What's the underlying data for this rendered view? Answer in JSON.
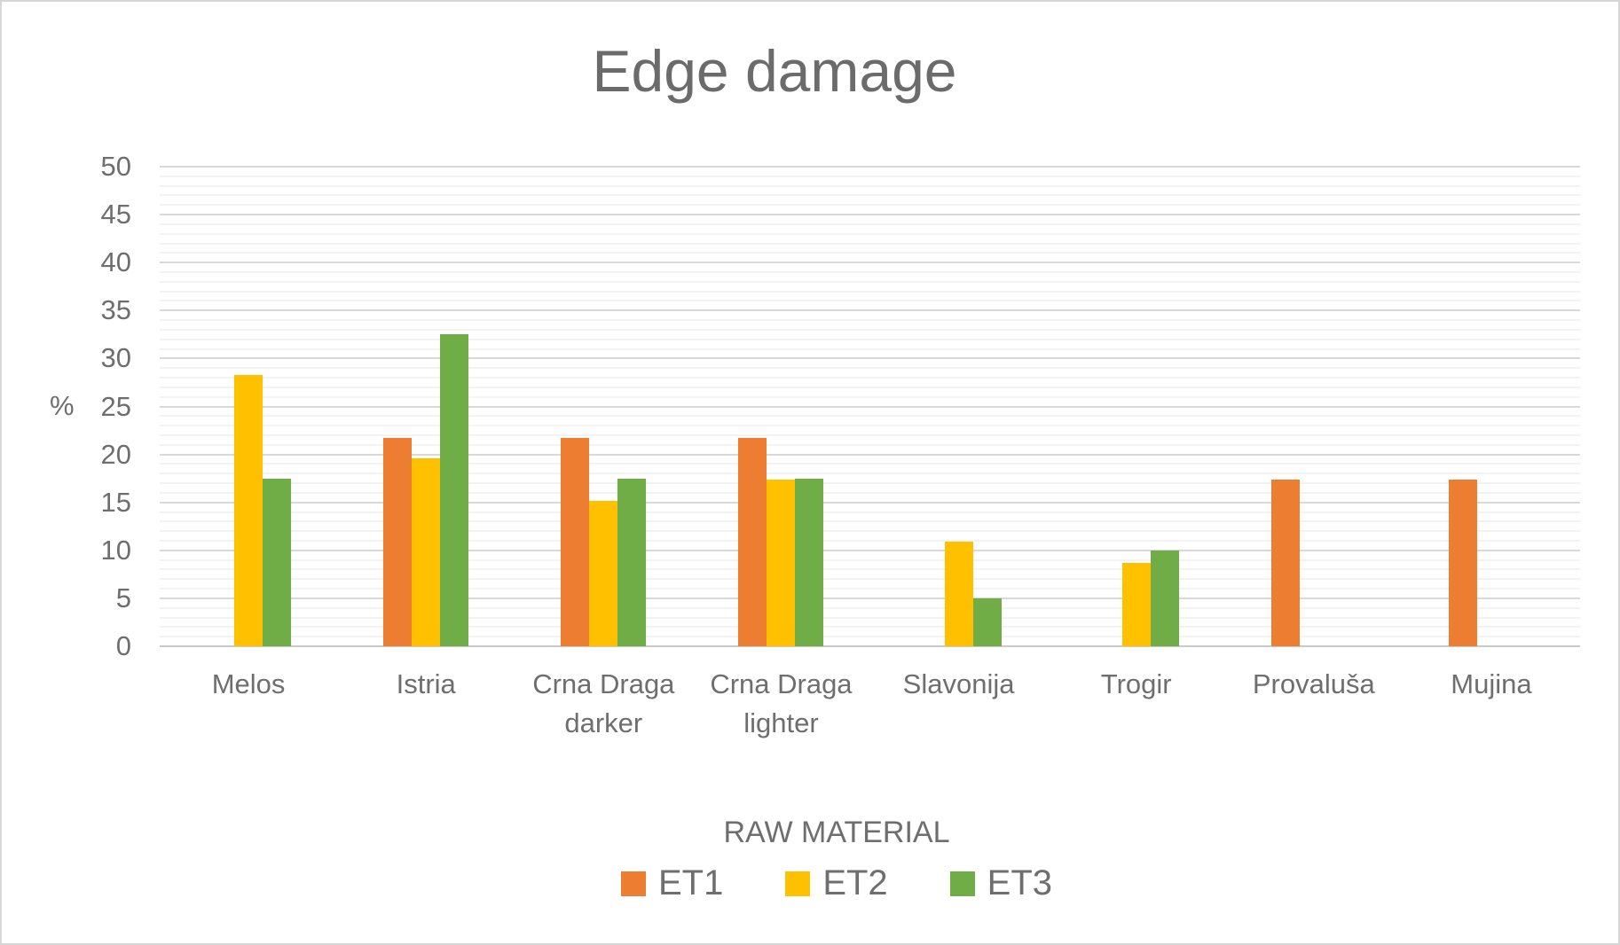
{
  "chart_data": {
    "type": "bar",
    "title": "Edge damage",
    "xlabel": "RAW MATERIAL",
    "ylabel": "%",
    "categories": [
      "Melos",
      "Istria",
      "Crna Draga darker",
      "Crna Draga lighter",
      "Slavonija",
      "Trogir",
      "Provaluša",
      "Mujina"
    ],
    "series": [
      {
        "name": "ET1",
        "color": "#ED7D31",
        "values": [
          0,
          21.7,
          21.7,
          21.7,
          0,
          0,
          17.4,
          17.4
        ]
      },
      {
        "name": "ET2",
        "color": "#FFC000",
        "values": [
          28.3,
          19.6,
          15.2,
          17.4,
          10.9,
          8.7,
          0,
          0
        ]
      },
      {
        "name": "ET3",
        "color": "#70AD47",
        "values": [
          17.5,
          32.5,
          17.5,
          17.5,
          5,
          10,
          0,
          0
        ]
      }
    ],
    "ylim": [
      0,
      50
    ],
    "y_tick_step": 5,
    "y_minor_step": 1,
    "y_tick_labels": [
      "0",
      "5",
      "10",
      "15",
      "20",
      "25",
      "30",
      "35",
      "40",
      "45",
      "50"
    ],
    "grid": "horizontal major and minor gridlines",
    "legend_position": "bottom"
  },
  "colors": {
    "et1": "#ED7D31",
    "et2": "#FFC000",
    "et3": "#70AD47",
    "title_text": "#6B6B6B",
    "axis_text": "#6E6E6E",
    "grid_major": "#D9D9D9",
    "grid_minor": "#F3F3F3",
    "axis_line": "#C9C9C9",
    "frame_border": "#D6D6D6",
    "background": "#FFFFFF"
  }
}
